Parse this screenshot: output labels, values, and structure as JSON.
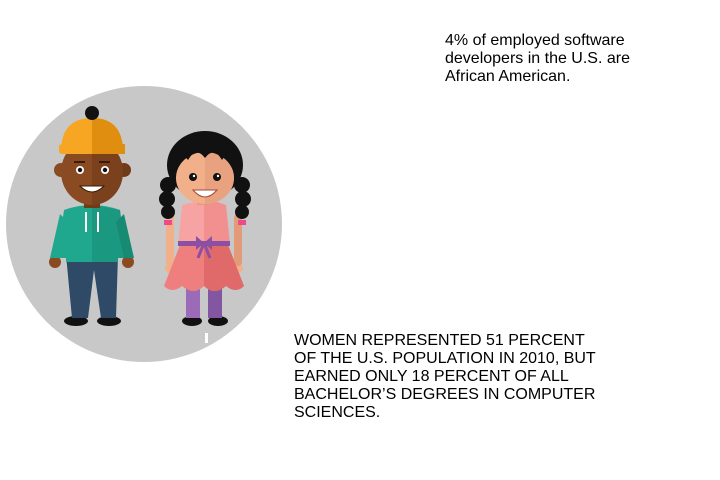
{
  "stats": {
    "top_text": "4% of employed software\ndevelopers in the U.S. are\nAfrican American.",
    "bottom_text": "WOMEN REPRESENTED 51 PERCENT\nOF THE U.S. POPULATION IN 2010, BUT\nEARNED ONLY 18 PERCENT OF ALL\nBACHELOR’S DEGREES IN COMPUTER\nSCIENCES."
  },
  "illustration": {
    "circle_color": "#c8c8c8",
    "boy": {
      "hat_color": "#f6a623",
      "skin_color": "#8a4b22",
      "jacket_color": "#1fa88e",
      "pants_color": "#2e4a66"
    },
    "girl": {
      "hair_color": "#111111",
      "skin_color": "#f2b08a",
      "top_color": "#f7a3a3",
      "skirt_color": "#ef7f7f",
      "belt_color": "#8b4fa3",
      "legs_color": "#9b6bb8"
    }
  }
}
